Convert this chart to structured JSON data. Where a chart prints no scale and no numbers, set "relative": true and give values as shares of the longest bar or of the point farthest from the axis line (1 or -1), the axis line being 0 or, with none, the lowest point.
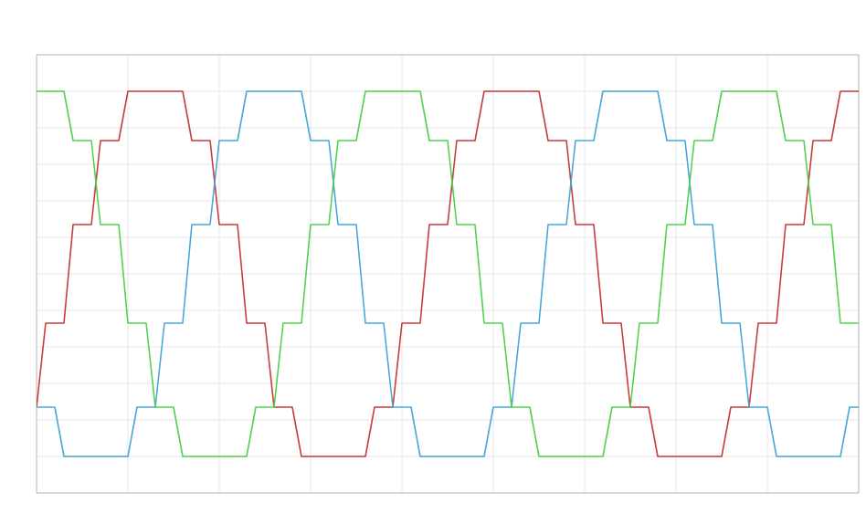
{
  "chart_data": {
    "type": "line",
    "relative": true,
    "grid": true,
    "categories": [
      null,
      null,
      null,
      null,
      null,
      null,
      null,
      null,
      null,
      null,
      null,
      null,
      null,
      null,
      null,
      null,
      null,
      null,
      null,
      null,
      null,
      null,
      null,
      null,
      null,
      null,
      null,
      null,
      null,
      null,
      null,
      null,
      null,
      null,
      null,
      null,
      null,
      null,
      null,
      null,
      null,
      null,
      null,
      null,
      null,
      null,
      null,
      null,
      null,
      null,
      null,
      null,
      null,
      null,
      null,
      null,
      null,
      null,
      null,
      null,
      null,
      null,
      null,
      null,
      null,
      null,
      null,
      null,
      null,
      null,
      null,
      null,
      null,
      null,
      null,
      null,
      null,
      null,
      null,
      null,
      null,
      null,
      null,
      null,
      null,
      null,
      null,
      null,
      null,
      null,
      null
    ],
    "series": [
      {
        "color": "#c83c3c",
        "values": [
          -0.73,
          -0.27,
          -0.27,
          -0.27,
          0.27,
          0.27,
          0.27,
          0.73,
          0.73,
          0.73,
          1,
          1,
          1,
          1,
          1,
          1,
          1,
          0.73,
          0.73,
          0.73,
          0.27,
          0.27,
          0.27,
          -0.27,
          -0.27,
          -0.27,
          -0.73,
          -0.73,
          -0.73,
          -1,
          -1,
          -1,
          -1,
          -1,
          -1,
          -1,
          -1,
          -0.73,
          -0.73,
          -0.73,
          -0.27,
          -0.27,
          -0.27,
          0.27,
          0.27,
          0.27,
          0.73,
          0.73,
          0.73,
          1,
          1,
          1,
          1,
          1,
          1,
          1,
          0.73,
          0.73,
          0.73,
          0.27,
          0.27,
          0.27,
          -0.27,
          -0.27,
          -0.27,
          -0.73,
          -0.73,
          -0.73,
          -1,
          -1,
          -1,
          -1,
          -1,
          -1,
          -1,
          -1,
          -0.73,
          -0.73,
          -0.73,
          -0.27,
          -0.27,
          -0.27,
          0.27,
          0.27,
          0.27,
          0.73,
          0.73,
          0.73,
          1,
          1,
          1
        ]
      },
      {
        "color": "#4aa8d8",
        "values": [
          -0.73,
          -0.73,
          -0.73,
          -1,
          -1,
          -1,
          -1,
          -1,
          -1,
          -1,
          -1,
          -0.73,
          -0.73,
          -0.73,
          -0.27,
          -0.27,
          -0.27,
          0.27,
          0.27,
          0.27,
          0.73,
          0.73,
          0.73,
          1,
          1,
          1,
          1,
          1,
          1,
          1,
          0.73,
          0.73,
          0.73,
          0.27,
          0.27,
          0.27,
          -0.27,
          -0.27,
          -0.27,
          -0.73,
          -0.73,
          -0.73,
          -1,
          -1,
          -1,
          -1,
          -1,
          -1,
          -1,
          -1,
          -0.73,
          -0.73,
          -0.73,
          -0.27,
          -0.27,
          -0.27,
          0.27,
          0.27,
          0.27,
          0.73,
          0.73,
          0.73,
          1,
          1,
          1,
          1,
          1,
          1,
          1,
          0.73,
          0.73,
          0.73,
          0.27,
          0.27,
          0.27,
          -0.27,
          -0.27,
          -0.27,
          -0.73,
          -0.73,
          -0.73,
          -1,
          -1,
          -1,
          -1,
          -1,
          -1,
          -1,
          -1,
          -0.73,
          -0.73
        ]
      },
      {
        "color": "#50d250",
        "values": [
          1,
          1,
          1,
          1,
          0.73,
          0.73,
          0.73,
          0.27,
          0.27,
          0.27,
          -0.27,
          -0.27,
          -0.27,
          -0.73,
          -0.73,
          -0.73,
          -1,
          -1,
          -1,
          -1,
          -1,
          -1,
          -1,
          -1,
          -0.73,
          -0.73,
          -0.73,
          -0.27,
          -0.27,
          -0.27,
          0.27,
          0.27,
          0.27,
          0.73,
          0.73,
          0.73,
          1,
          1,
          1,
          1,
          1,
          1,
          1,
          0.73,
          0.73,
          0.73,
          0.27,
          0.27,
          0.27,
          -0.27,
          -0.27,
          -0.27,
          -0.73,
          -0.73,
          -0.73,
          -1,
          -1,
          -1,
          -1,
          -1,
          -1,
          -1,
          -1,
          -0.73,
          -0.73,
          -0.73,
          -0.27,
          -0.27,
          -0.27,
          0.27,
          0.27,
          0.27,
          0.73,
          0.73,
          0.73,
          1,
          1,
          1,
          1,
          1,
          1,
          1,
          0.73,
          0.73,
          0.73,
          0.27,
          0.27,
          0.27,
          -0.27,
          -0.27,
          -0.27
        ]
      }
    ]
  }
}
